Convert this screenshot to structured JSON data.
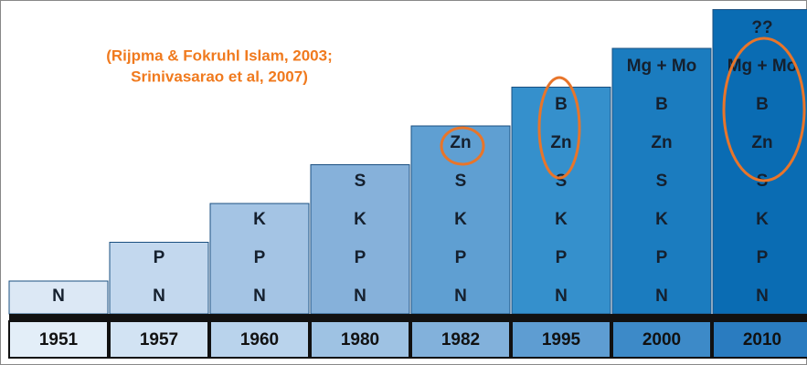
{
  "citation": [
    "(Rijpma & Fokruhl Islam, 2003;",
    "Srinivasarao et al, 2007)"
  ],
  "columns": [
    {
      "year": "1951",
      "nutrients": [
        "N"
      ]
    },
    {
      "year": "1957",
      "nutrients": [
        "N",
        "P"
      ]
    },
    {
      "year": "1960",
      "nutrients": [
        "N",
        "P",
        "K"
      ]
    },
    {
      "year": "1980",
      "nutrients": [
        "N",
        "P",
        "K",
        "S"
      ]
    },
    {
      "year": "1982",
      "nutrients": [
        "N",
        "P",
        "K",
        "S",
        "Zn"
      ]
    },
    {
      "year": "1995",
      "nutrients": [
        "N",
        "P",
        "K",
        "S",
        "Zn",
        "B"
      ]
    },
    {
      "year": "2000",
      "nutrients": [
        "N",
        "P",
        "K",
        "S",
        "Zn",
        "B",
        "Mg + Mo"
      ]
    },
    {
      "year": "2010",
      "nutrients": [
        "N",
        "P",
        "K",
        "S",
        "Zn",
        "B",
        "Mg + Mo",
        "??"
      ]
    }
  ]
}
